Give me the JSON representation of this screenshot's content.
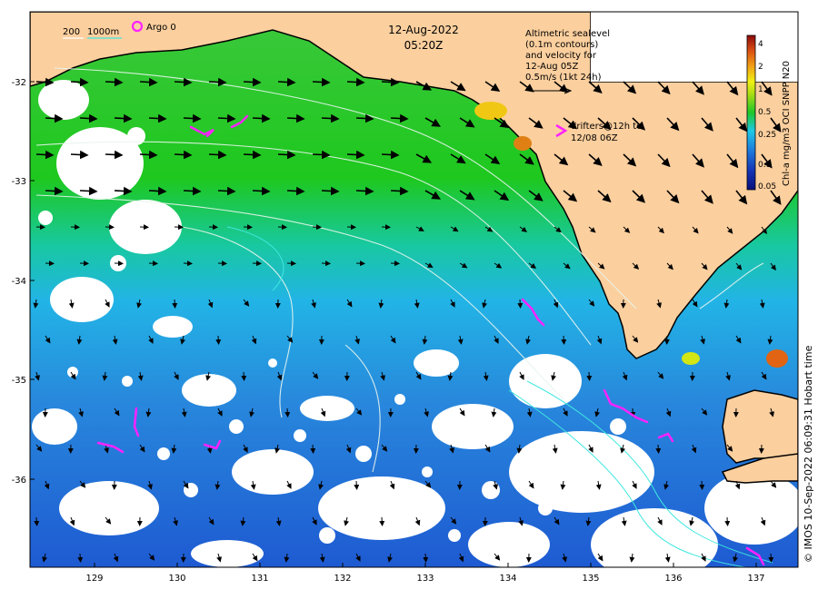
{
  "header": {
    "date": "12-Aug-2022",
    "time": "05:20Z"
  },
  "bathymetry_legend": {
    "label_200": "200",
    "label_1000": "1000m"
  },
  "argo_legend": {
    "label": "Argo 0"
  },
  "sealevel_note": {
    "line1": "Altimetric sealevel",
    "line2": "(0.1m contours)",
    "line3": "and velocity for",
    "line4": "12-Aug 05Z",
    "line5": "0.5m/s (1kt 24h)"
  },
  "drifters_note": {
    "line1": "drifters@12h to",
    "line2": "12/08 06Z"
  },
  "colorbar": {
    "title": "Chl-a mg/m3 OCI SNPP N20",
    "ticks": [
      "4",
      "2",
      "1",
      "0.5",
      "0.25",
      "0.1",
      "0.05"
    ]
  },
  "axes": {
    "x_ticks": [
      "129",
      "130",
      "131",
      "132",
      "133",
      "134",
      "135",
      "136",
      "137"
    ],
    "y_ticks": [
      "-32",
      "-33",
      "-34",
      "-35",
      "-36"
    ]
  },
  "credit": "© IMOS 10-Sep-2022 06:09:31 Hobart time",
  "colors": {
    "land": "#fbcf9e",
    "ocean_high": "#22c81e",
    "ocean_mid": "#22b4e6",
    "ocean_low": "#1e64d2",
    "drifter": "#ff22ff",
    "contour": "#e6f5f0"
  }
}
